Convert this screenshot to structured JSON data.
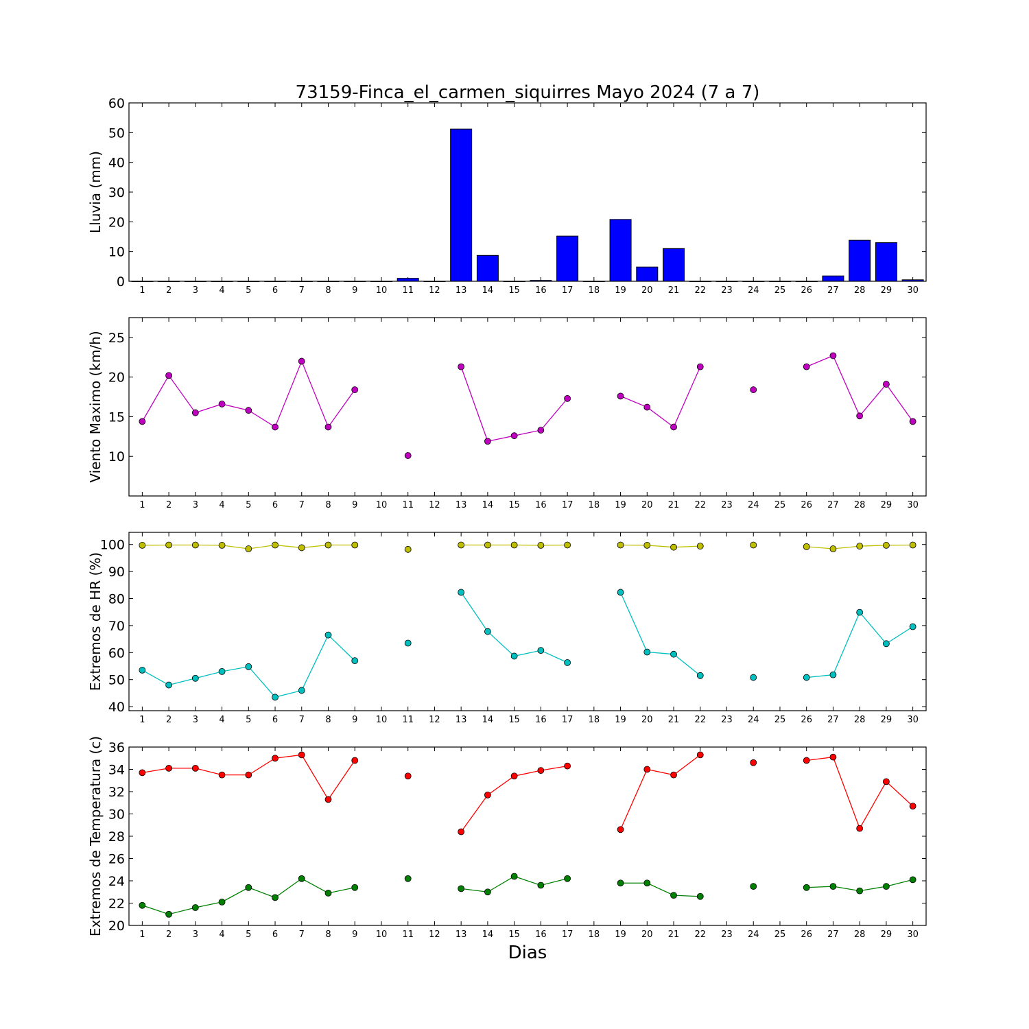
{
  "chart_data": {
    "title": "73159-Finca_el_carmen_siquirres Mayo 2024  (7 a 7)",
    "xlabel": "Dias",
    "days": [
      1,
      2,
      3,
      4,
      5,
      6,
      7,
      8,
      9,
      10,
      11,
      12,
      13,
      14,
      15,
      16,
      17,
      18,
      19,
      20,
      21,
      22,
      23,
      24,
      25,
      26,
      27,
      28,
      29,
      30
    ],
    "panels": [
      {
        "id": "lluvia",
        "type": "bar",
        "ylabel": "Lluvia (mm)",
        "ylim": [
          0,
          60
        ],
        "yticks": [
          0,
          10,
          20,
          30,
          40,
          50,
          60
        ],
        "series": [
          {
            "color": "#0000ff",
            "values": [
              0,
              0,
              0,
              0,
              0,
              0,
              0,
              0,
              0,
              0,
              1.0,
              0,
              51.2,
              8.7,
              0,
              0.3,
              15.2,
              0,
              20.8,
              4.8,
              11.0,
              0,
              0,
              0,
              0,
              0,
              1.8,
              13.8,
              13.0,
              0.5
            ]
          }
        ]
      },
      {
        "id": "viento",
        "type": "line",
        "ylabel": "Viento Maximo (km/h)",
        "ylim": [
          5,
          27.5
        ],
        "yticks": [
          10,
          15,
          20,
          25
        ],
        "series": [
          {
            "color": "#bf00bf",
            "values": [
              14.4,
              20.2,
              15.5,
              16.6,
              15.8,
              13.7,
              22.0,
              13.7,
              18.4,
              null,
              10.1,
              null,
              21.3,
              11.9,
              12.6,
              13.3,
              17.3,
              null,
              17.6,
              16.2,
              13.7,
              21.3,
              null,
              18.4,
              null,
              21.3,
              22.7,
              15.1,
              19.1,
              14.4
            ]
          }
        ]
      },
      {
        "id": "hr",
        "type": "line",
        "ylabel": "Extremos de HR (%)",
        "ylim": [
          38.5,
          104.5
        ],
        "yticks": [
          40,
          50,
          60,
          70,
          80,
          90,
          100
        ],
        "series": [
          {
            "color": "#bfbf00",
            "values": [
              99.7,
              99.8,
              99.8,
              99.7,
              98.4,
              99.8,
              98.8,
              99.8,
              99.8,
              null,
              98.2,
              null,
              99.8,
              99.8,
              99.8,
              99.7,
              99.8,
              null,
              99.8,
              99.7,
              99.0,
              99.4,
              null,
              99.8,
              null,
              99.2,
              98.4,
              99.4,
              99.7,
              99.8
            ]
          },
          {
            "color": "#00bfbf",
            "values": [
              53.5,
              48.0,
              50.5,
              53.0,
              54.8,
              43.5,
              46.0,
              66.5,
              57.0,
              null,
              63.5,
              null,
              82.3,
              67.8,
              58.7,
              60.8,
              56.3,
              null,
              82.3,
              60.2,
              59.4,
              51.5,
              null,
              50.8,
              null,
              50.8,
              51.8,
              74.9,
              63.3,
              69.6
            ]
          }
        ]
      },
      {
        "id": "temperatura",
        "type": "line",
        "ylabel": "Extremos de Temperatura (c)",
        "ylim": [
          20,
          36
        ],
        "yticks": [
          20,
          22,
          24,
          26,
          28,
          30,
          32,
          34,
          36
        ],
        "series": [
          {
            "color": "#ff0000",
            "values": [
              33.7,
              34.1,
              34.1,
              33.5,
              33.5,
              35.0,
              35.3,
              31.3,
              34.8,
              null,
              33.4,
              null,
              28.4,
              31.7,
              33.4,
              33.9,
              34.3,
              null,
              28.6,
              34.0,
              33.5,
              35.3,
              null,
              34.6,
              null,
              34.8,
              35.1,
              28.7,
              32.9,
              30.7
            ]
          },
          {
            "color": "#008000",
            "values": [
              21.8,
              21.0,
              21.6,
              22.1,
              23.4,
              22.5,
              24.2,
              22.9,
              23.4,
              null,
              24.2,
              null,
              23.3,
              23.0,
              24.4,
              23.6,
              24.2,
              null,
              23.8,
              23.8,
              22.7,
              22.6,
              null,
              23.5,
              null,
              23.4,
              23.5,
              23.1,
              23.5,
              24.1
            ]
          }
        ]
      }
    ]
  }
}
